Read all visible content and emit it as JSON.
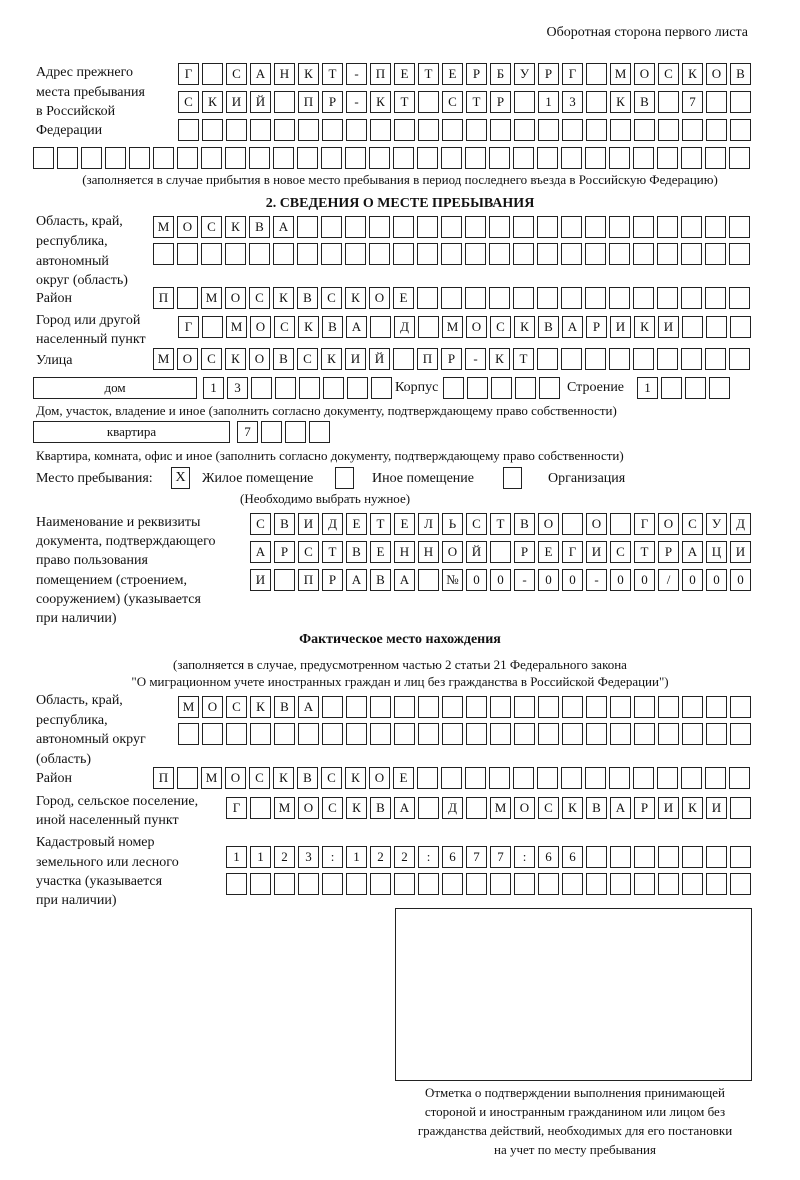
{
  "header": {
    "side_label": "Оборотная сторона первого листа"
  },
  "previous_address": {
    "label": [
      "Адрес прежнего",
      "места пребывания",
      "в Российской",
      "Федерации"
    ],
    "rows": [
      [
        "Г",
        "",
        "С",
        "А",
        "Н",
        "К",
        "Т",
        "-",
        "П",
        "Е",
        "Т",
        "Е",
        "Р",
        "Б",
        "У",
        "Р",
        "Г",
        "",
        "М",
        "О",
        "С",
        "К",
        "О",
        "В"
      ],
      [
        "С",
        "К",
        "И",
        "Й",
        "",
        "П",
        "Р",
        "-",
        "К",
        "Т",
        "",
        "С",
        "Т",
        "Р",
        "",
        "1",
        "3",
        "",
        "К",
        "В",
        "",
        "7"
      ],
      [],
      []
    ],
    "note": "(заполняется в случае прибытия в новое место пребывания в период последнего въезда в Российскую Федерацию)"
  },
  "section2": {
    "title": "2. СВЕДЕНИЯ О МЕСТЕ ПРЕБЫВАНИЯ",
    "region_label": [
      "Область, край,",
      "республика,",
      "автономный",
      "округ (область)"
    ],
    "region_rows": [
      [
        "М",
        "О",
        "С",
        "К",
        "В",
        "А"
      ],
      []
    ],
    "district_label": "Район",
    "district": [
      "П",
      "",
      "М",
      "О",
      "С",
      "К",
      "В",
      "С",
      "К",
      "О",
      "Е"
    ],
    "city_label": [
      "Город или другой",
      "населенный пункт"
    ],
    "city": [
      "Г",
      "",
      "М",
      "О",
      "С",
      "К",
      "В",
      "А",
      "",
      "Д",
      "",
      "М",
      "О",
      "С",
      "К",
      "В",
      "А",
      "Р",
      "И",
      "К",
      "И"
    ],
    "street_label": "Улица",
    "street": [
      "М",
      "О",
      "С",
      "К",
      "О",
      "В",
      "С",
      "К",
      "И",
      "Й",
      "",
      "П",
      "Р",
      "-",
      "К",
      "Т"
    ],
    "house_type": "дом",
    "house": [
      "1",
      "3"
    ],
    "korpus_label": "Корпус",
    "korpus": [],
    "building_label": "Строение",
    "building": [
      "1"
    ],
    "house_caption": "Дом, участок, владение и иное (заполнить согласно документу, подтверждающему право собственности)",
    "apartment_type": "квартира",
    "apartment": [
      "7"
    ],
    "apartment_caption": "Квартира, комната, офис и иное (заполнить согласно документу, подтверждающему право собственности)",
    "stay_place_label": "Место пребывания:",
    "stay_options": [
      {
        "label": "Жилое помещение",
        "mark": "X",
        "checked": true
      },
      {
        "label": "Иное помещение",
        "mark": "",
        "checked": false
      },
      {
        "label": "Организация",
        "mark": "",
        "checked": false
      }
    ],
    "stay_hint": "(Необходимо выбрать нужное)",
    "document_label": [
      "Наименование и реквизиты",
      "документа, подтверждающего",
      "право пользования",
      "помещением (строением,",
      "сооружением) (указывается",
      "при наличии)"
    ],
    "document_rows": [
      [
        "С",
        "В",
        "И",
        "Д",
        "Е",
        "Т",
        "Е",
        "Л",
        "Ь",
        "С",
        "Т",
        "В",
        "О",
        "",
        "О",
        "",
        "Г",
        "О",
        "С",
        "У",
        "Д"
      ],
      [
        "А",
        "Р",
        "С",
        "Т",
        "В",
        "Е",
        "Н",
        "Н",
        "О",
        "Й",
        "",
        "Р",
        "Е",
        "Г",
        "И",
        "С",
        "Т",
        "Р",
        "А",
        "Ц",
        "И"
      ],
      [
        "И",
        "",
        "П",
        "Р",
        "А",
        "В",
        "А",
        "",
        "№",
        "0",
        "0",
        "-",
        "0",
        "0",
        "-",
        "0",
        "0",
        "/",
        "0",
        "0",
        "0"
      ]
    ]
  },
  "actual": {
    "title": "Фактическое место нахождения",
    "note": [
      "(заполняется в случае, предусмотренном частью 2 статьи 21 Федерального закона",
      "\"О миграционном учете иностранных граждан и лиц без гражданства в Российской Федерации\")"
    ],
    "region_label": [
      "Область, край,",
      "республика,",
      "автономный округ",
      "(область)"
    ],
    "region_rows": [
      [
        "М",
        "О",
        "С",
        "К",
        "В",
        "А"
      ],
      []
    ],
    "district_label": "Район",
    "district": [
      "П",
      "",
      "М",
      "О",
      "С",
      "К",
      "В",
      "С",
      "К",
      "О",
      "Е"
    ],
    "city_label": [
      "Город, сельское поселение,",
      "иной населенный пункт"
    ],
    "city": [
      "Г",
      "",
      "М",
      "О",
      "С",
      "К",
      "В",
      "А",
      "",
      "Д",
      "",
      "М",
      "О",
      "С",
      "К",
      "В",
      "А",
      "Р",
      "И",
      "К",
      "И"
    ],
    "cadastral_label": [
      "Кадастровый номер",
      "земельного или лесного",
      "участка (указывается",
      "при наличии)"
    ],
    "cadastral_rows": [
      [
        "1",
        "1",
        "2",
        "3",
        ":",
        "1",
        "2",
        "2",
        ":",
        "6",
        "7",
        "7",
        ":",
        "6",
        "6"
      ],
      []
    ]
  },
  "confirmation": {
    "caption": [
      "Отметка о подтверждении выполнения принимающей",
      "стороной и иностранным гражданином или лицом без",
      "гражданства действий, необходимых для его постановки",
      "на учет по месту пребывания"
    ]
  }
}
